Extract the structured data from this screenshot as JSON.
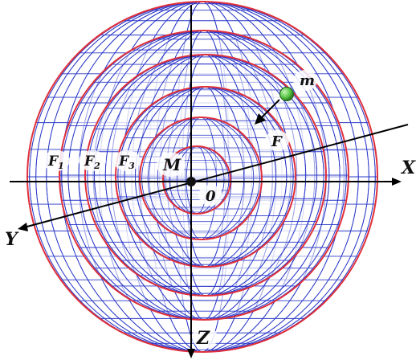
{
  "labels": {
    "x_axis": "X",
    "y_axis": "Y",
    "z_axis": "Z",
    "origin": "0",
    "central_mass": "M",
    "test_mass": "m",
    "force": "F",
    "field_1": "F",
    "field_1_sub": "1",
    "field_2": "F",
    "field_2_sub": "2",
    "field_3": "F",
    "field_3_sub": "3"
  },
  "colors": {
    "mesh": "#2a38c8",
    "shell_edge": "#e0303a",
    "axis": "#000000",
    "test_mass_fill": "#5cc84a"
  },
  "icons": {
    "test_mass": "green-sphere",
    "center": "black-dot"
  }
}
